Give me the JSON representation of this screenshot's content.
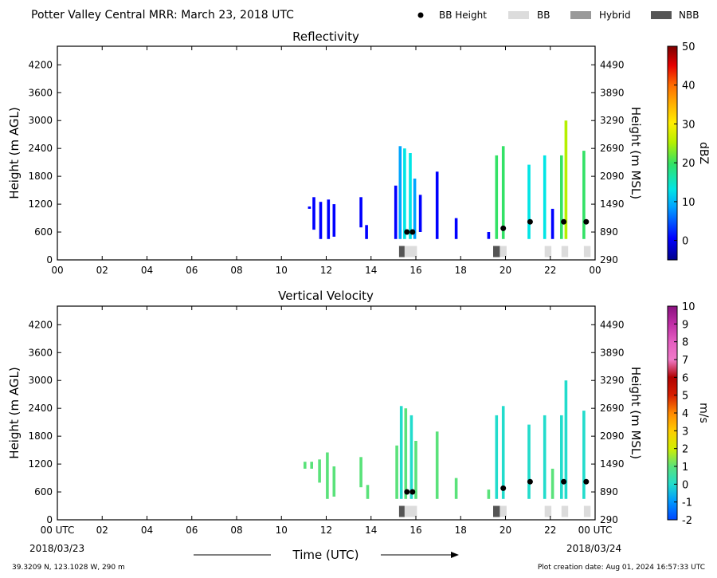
{
  "figure_title": "Potter Valley Central MRR:  March 23, 2018 UTC",
  "legend": {
    "items": [
      {
        "label": "BB Height",
        "kind": "marker",
        "color": "#000000"
      },
      {
        "label": "BB",
        "kind": "patch",
        "color": "#dcdcdc"
      },
      {
        "label": "Hybrid",
        "kind": "patch",
        "color": "#999999"
      },
      {
        "label": "NBB",
        "kind": "patch",
        "color": "#555555"
      }
    ]
  },
  "footer": {
    "location": "39.3209 N, 123.1028 W, 290 m",
    "creation": "Plot creation date: Aug 01, 2024 16:57:33 UTC",
    "date_start": "2018/03/23",
    "date_end": "2018/03/24",
    "xlabel": "Time (UTC)"
  },
  "chart_data": [
    {
      "type": "heatmap",
      "title": "Reflectivity",
      "ylabel_left": "Height (m AGL)",
      "ylabel_right": "Height (m MSL)",
      "y_ticks_left": [
        "0",
        "600",
        "1200",
        "1800",
        "2400",
        "3000",
        "3600",
        "4200"
      ],
      "y_ticks_right": [
        "290",
        "890",
        "1490",
        "2090",
        "2690",
        "3290",
        "3890",
        "4490"
      ],
      "x_ticks": [
        "00",
        "02",
        "04",
        "06",
        "08",
        "10",
        "12",
        "14",
        "16",
        "18",
        "20",
        "22",
        "00"
      ],
      "xlim_hours": [
        0,
        24
      ],
      "ylim_m": [
        0,
        4600
      ],
      "colorbar": {
        "label": "dBZ",
        "ticks": [
          "0",
          "10",
          "20",
          "30",
          "40",
          "50"
        ],
        "range": [
          -5,
          50
        ]
      },
      "echo_columns": [
        {
          "t": 11.25,
          "top": 1150,
          "bottom": 1100,
          "v": 4
        },
        {
          "t": 11.45,
          "top": 1350,
          "bottom": 650,
          "v": 2
        },
        {
          "t": 11.75,
          "top": 1250,
          "bottom": 450,
          "v": 4
        },
        {
          "t": 12.1,
          "top": 1300,
          "bottom": 450,
          "v": 3
        },
        {
          "t": 12.35,
          "top": 1200,
          "bottom": 500,
          "v": 3
        },
        {
          "t": 13.55,
          "top": 1350,
          "bottom": 700,
          "v": 2
        },
        {
          "t": 13.8,
          "top": 750,
          "bottom": 450,
          "v": 2
        },
        {
          "t": 15.1,
          "top": 1600,
          "bottom": 450,
          "v": 4
        },
        {
          "t": 15.3,
          "top": 2450,
          "bottom": 450,
          "v": 12
        },
        {
          "t": 15.5,
          "top": 2400,
          "bottom": 450,
          "v": 15
        },
        {
          "t": 15.75,
          "top": 2300,
          "bottom": 450,
          "v": 13
        },
        {
          "t": 15.95,
          "top": 1750,
          "bottom": 450,
          "v": 9
        },
        {
          "t": 16.2,
          "top": 1400,
          "bottom": 600,
          "v": 5
        },
        {
          "t": 16.95,
          "top": 1900,
          "bottom": 450,
          "v": 4
        },
        {
          "t": 17.8,
          "top": 900,
          "bottom": 450,
          "v": 3
        },
        {
          "t": 19.25,
          "top": 600,
          "bottom": 450,
          "v": 3
        },
        {
          "t": 19.6,
          "top": 2250,
          "bottom": 450,
          "v": 22
        },
        {
          "t": 19.9,
          "top": 2450,
          "bottom": 450,
          "v": 24
        },
        {
          "t": 21.05,
          "top": 2050,
          "bottom": 450,
          "v": 16
        },
        {
          "t": 21.75,
          "top": 2250,
          "bottom": 450,
          "v": 14
        },
        {
          "t": 22.1,
          "top": 1100,
          "bottom": 450,
          "v": 4
        },
        {
          "t": 22.5,
          "top": 2250,
          "bottom": 450,
          "v": 20
        },
        {
          "t": 22.7,
          "top": 3000,
          "bottom": 450,
          "v": 25
        },
        {
          "t": 23.5,
          "top": 2350,
          "bottom": 450,
          "v": 22
        }
      ],
      "bb_height_markers": [
        {
          "t": 15.6,
          "h": 600
        },
        {
          "t": 15.85,
          "h": 600
        },
        {
          "t": 19.9,
          "h": 680
        },
        {
          "t": 21.1,
          "h": 820
        },
        {
          "t": 22.6,
          "h": 820
        },
        {
          "t": 23.6,
          "h": 820
        }
      ],
      "bb_type_bars": [
        {
          "start": 15.25,
          "end": 15.5,
          "kind": "NBB"
        },
        {
          "start": 15.5,
          "end": 16.05,
          "kind": "BB"
        },
        {
          "start": 19.45,
          "end": 19.75,
          "kind": "NBB"
        },
        {
          "start": 19.75,
          "end": 20.05,
          "kind": "BB"
        },
        {
          "start": 21.75,
          "end": 22.05,
          "kind": "BB"
        },
        {
          "start": 22.5,
          "end": 22.8,
          "kind": "BB"
        },
        {
          "start": 23.5,
          "end": 23.8,
          "kind": "BB"
        }
      ]
    },
    {
      "type": "heatmap",
      "title": "Vertical Velocity",
      "ylabel_left": "Height (m AGL)",
      "ylabel_right": "Height (m MSL)",
      "y_ticks_left": [
        "0",
        "600",
        "1200",
        "1800",
        "2400",
        "3000",
        "3600",
        "4200"
      ],
      "y_ticks_right": [
        "290",
        "890",
        "1490",
        "2090",
        "2690",
        "3290",
        "3890",
        "4490"
      ],
      "x_ticks": [
        "00 UTC",
        "02",
        "04",
        "06",
        "08",
        "10",
        "12",
        "14",
        "16",
        "18",
        "20",
        "22",
        "00 UTC"
      ],
      "xlim_hours": [
        0,
        24
      ],
      "ylim_m": [
        0,
        4600
      ],
      "colorbar": {
        "label": "m/s",
        "ticks": [
          "-2",
          "-1",
          "0",
          "1",
          "2",
          "3",
          "4",
          "5",
          "6",
          "7",
          "8",
          "9",
          "10"
        ],
        "range": [
          -2,
          10
        ]
      },
      "echo_columns": [
        {
          "t": 11.05,
          "top": 1250,
          "bottom": 1100,
          "v": 1.5
        },
        {
          "t": 11.35,
          "top": 1250,
          "bottom": 1100,
          "v": 1.5
        },
        {
          "t": 11.7,
          "top": 1300,
          "bottom": 800,
          "v": 1.5
        },
        {
          "t": 12.05,
          "top": 1450,
          "bottom": 450,
          "v": 1.5
        },
        {
          "t": 12.35,
          "top": 1150,
          "bottom": 500,
          "v": 1.5
        },
        {
          "t": 13.55,
          "top": 1350,
          "bottom": 700,
          "v": 1.5
        },
        {
          "t": 13.85,
          "top": 750,
          "bottom": 450,
          "v": 1.5
        },
        {
          "t": 15.15,
          "top": 1600,
          "bottom": 450,
          "v": 1.5
        },
        {
          "t": 15.35,
          "top": 2450,
          "bottom": 450,
          "v": 0.5
        },
        {
          "t": 15.55,
          "top": 2400,
          "bottom": 450,
          "v": 1.5
        },
        {
          "t": 15.8,
          "top": 2250,
          "bottom": 450,
          "v": 0.5
        },
        {
          "t": 16.0,
          "top": 1700,
          "bottom": 450,
          "v": 1.5
        },
        {
          "t": 16.95,
          "top": 1900,
          "bottom": 450,
          "v": 1.5
        },
        {
          "t": 17.8,
          "top": 900,
          "bottom": 450,
          "v": 1.5
        },
        {
          "t": 19.25,
          "top": 650,
          "bottom": 450,
          "v": 1.5
        },
        {
          "t": 19.6,
          "top": 2250,
          "bottom": 450,
          "v": 0.5
        },
        {
          "t": 19.9,
          "top": 2450,
          "bottom": 450,
          "v": 0.5
        },
        {
          "t": 21.05,
          "top": 2050,
          "bottom": 450,
          "v": 0.5
        },
        {
          "t": 21.75,
          "top": 2250,
          "bottom": 450,
          "v": 0.5
        },
        {
          "t": 22.1,
          "top": 1100,
          "bottom": 450,
          "v": 1.5
        },
        {
          "t": 22.5,
          "top": 2250,
          "bottom": 450,
          "v": 0.5
        },
        {
          "t": 22.7,
          "top": 3000,
          "bottom": 450,
          "v": 0.5
        },
        {
          "t": 23.5,
          "top": 2350,
          "bottom": 450,
          "v": 0.5
        }
      ],
      "bb_height_markers": [
        {
          "t": 15.6,
          "h": 600
        },
        {
          "t": 15.85,
          "h": 600
        },
        {
          "t": 19.9,
          "h": 680
        },
        {
          "t": 21.1,
          "h": 820
        },
        {
          "t": 22.6,
          "h": 820
        },
        {
          "t": 23.6,
          "h": 820
        }
      ],
      "bb_type_bars": [
        {
          "start": 15.25,
          "end": 15.5,
          "kind": "NBB"
        },
        {
          "start": 15.5,
          "end": 16.05,
          "kind": "BB"
        },
        {
          "start": 19.45,
          "end": 19.75,
          "kind": "NBB"
        },
        {
          "start": 19.75,
          "end": 20.05,
          "kind": "BB"
        },
        {
          "start": 21.75,
          "end": 22.05,
          "kind": "BB"
        },
        {
          "start": 22.5,
          "end": 22.8,
          "kind": "BB"
        },
        {
          "start": 23.5,
          "end": 23.8,
          "kind": "BB"
        }
      ]
    }
  ]
}
